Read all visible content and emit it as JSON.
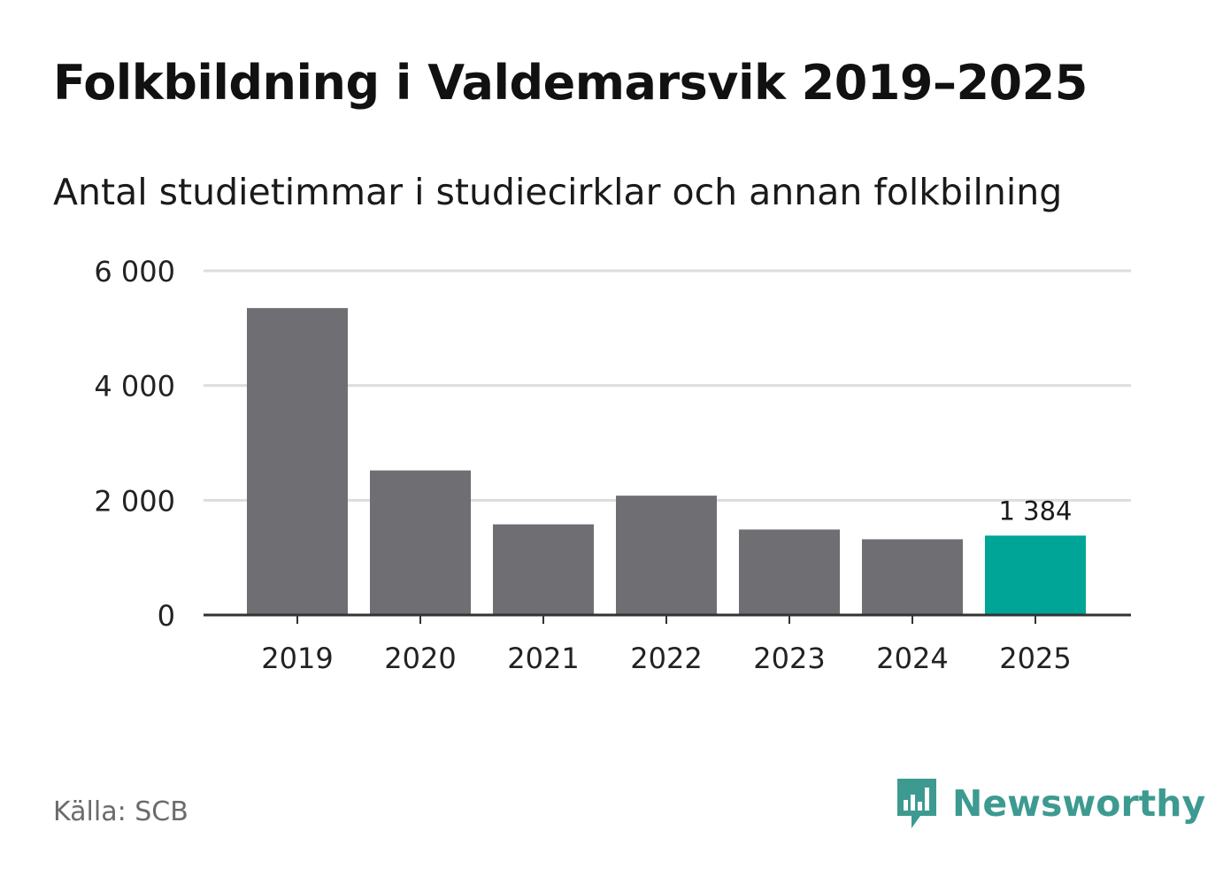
{
  "title": "Folkbildning i Valdemarsvik 2019–2025",
  "subtitle": "Antal studietimmar i studiecirklar och annan folkbilning",
  "source": "Källa: SCB",
  "brand": {
    "name": "Newsworthy",
    "icon": "newsworthy-logo-icon"
  },
  "colors": {
    "bar": "#6f6e73",
    "highlight": "#00a598",
    "grid": "#dddddd",
    "axis": "#333333",
    "brand": "#3d9a91"
  },
  "chart_data": {
    "type": "bar",
    "title": "Folkbildning i Valdemarsvik 2019–2025",
    "xlabel": "",
    "ylabel": "",
    "categories": [
      "2019",
      "2020",
      "2021",
      "2022",
      "2023",
      "2024",
      "2025"
    ],
    "values": [
      5350,
      2520,
      1580,
      2080,
      1490,
      1320,
      1384
    ],
    "highlight_index": 6,
    "data_labels": [
      {
        "index": 6,
        "text": "1 384"
      }
    ],
    "ylim": [
      0,
      6000
    ],
    "yticks": [
      0,
      2000,
      4000,
      6000
    ],
    "ytick_labels": [
      "0",
      "2 000",
      "4 000",
      "6 000"
    ],
    "grid": true
  }
}
